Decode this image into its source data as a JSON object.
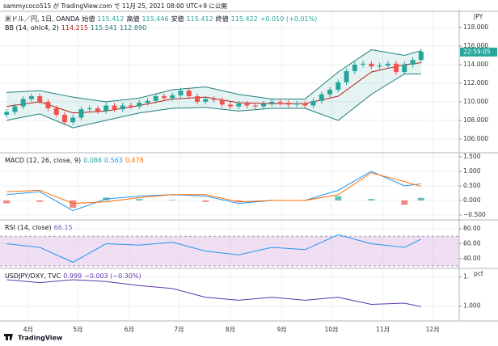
{
  "header": {
    "text": "sammycoco515 が TradingView.com で 11月 25, 2021 08:00 UTC+9 に公開"
  },
  "logo": "TradingView",
  "chart_data": [
    {
      "type": "candlestick",
      "unit": "JPY",
      "badge": "22:59:05",
      "badge_color": "#26a69a",
      "legend": [
        [
          {
            "text": "米ドル／円, 1日, OANDA",
            "color": "#131722"
          },
          {
            "text": "始値",
            "color": "#131722"
          },
          {
            "text": "115.412",
            "color": "#26a69a"
          },
          {
            "text": "高値",
            "color": "#131722"
          },
          {
            "text": "115.446",
            "color": "#26a69a"
          },
          {
            "text": "安値",
            "color": "#131722"
          },
          {
            "text": "115.412",
            "color": "#26a69a"
          },
          {
            "text": "終値",
            "color": "#131722"
          },
          {
            "text": "115.422",
            "color": "#26a69a"
          },
          {
            "text": "+0.010 (+0.01%)",
            "color": "#26a69a"
          }
        ],
        [
          {
            "text": "BB (14, ohlc4, 2)",
            "color": "#131722"
          },
          {
            "text": "114.215",
            "color": "#b71c1c"
          },
          {
            "text": "115.541",
            "color": "#1e7f7a"
          },
          {
            "text": "112.890",
            "color": "#1e7f7a"
          }
        ]
      ],
      "xlim": [
        -17,
        260
      ],
      "ylim": [
        104.6,
        119.65
      ],
      "yticks": [
        {
          "value": 106,
          "label": "106.000"
        },
        {
          "value": 108,
          "label": "108.000"
        },
        {
          "value": 110,
          "label": "110.000"
        },
        {
          "value": 112,
          "label": "112.000"
        },
        {
          "value": 114,
          "label": "114.000"
        },
        {
          "value": 116,
          "label": "116.000"
        },
        {
          "value": 118,
          "label": "118.000"
        }
      ],
      "up_color": "#26a69a",
      "down_color": "#ef5350",
      "x": [
        -13,
        -8,
        -3,
        2,
        7,
        12,
        17,
        22,
        27,
        32,
        37,
        42,
        47,
        52,
        57,
        62,
        67,
        72,
        77,
        82,
        87,
        92,
        97,
        102,
        107,
        112,
        117,
        122,
        127,
        132,
        137,
        142,
        147,
        152,
        157,
        162,
        167,
        172,
        177,
        182,
        187,
        192,
        197,
        202,
        207,
        212,
        217,
        222,
        227,
        232,
        237
      ],
      "open": [
        108.6,
        108.9,
        109.5,
        110.3,
        110.6,
        110.0,
        109.3,
        108.6,
        107.8,
        108.3,
        109.2,
        109.3,
        109.0,
        109.6,
        109.2,
        109.6,
        109.5,
        109.9,
        110.1,
        110.6,
        110.4,
        110.7,
        111.2,
        110.6,
        110.0,
        110.3,
        110.2,
        109.7,
        109.5,
        109.8,
        109.6,
        109.5,
        109.8,
        110.0,
        109.9,
        109.7,
        109.8,
        109.6,
        110.1,
        110.8,
        111.3,
        112.1,
        113.3,
        114.0,
        114.1,
        113.8,
        113.9,
        114.1,
        113.2,
        114.0,
        114.5
      ],
      "high": [
        109.2,
        109.8,
        110.6,
        110.9,
        110.9,
        110.3,
        109.6,
        108.9,
        108.6,
        109.5,
        109.6,
        109.6,
        109.9,
        109.9,
        109.9,
        109.9,
        110.2,
        110.4,
        110.9,
        110.9,
        111.0,
        111.5,
        111.5,
        110.9,
        110.6,
        110.6,
        110.5,
        110.0,
        110.1,
        110.1,
        109.9,
        110.1,
        110.3,
        110.3,
        110.2,
        110.1,
        110.1,
        110.4,
        111.1,
        111.6,
        112.4,
        113.6,
        114.3,
        114.4,
        114.4,
        114.2,
        114.4,
        114.4,
        114.3,
        114.8,
        115.7
      ],
      "low": [
        108.3,
        108.6,
        109.2,
        110.0,
        109.7,
        109.0,
        108.3,
        107.5,
        107.5,
        108.0,
        108.9,
        108.7,
        108.7,
        108.9,
        108.9,
        109.2,
        109.2,
        109.6,
        109.8,
        110.1,
        110.1,
        110.4,
        110.3,
        109.7,
        109.7,
        109.9,
        109.4,
        109.2,
        109.2,
        109.3,
        109.2,
        109.2,
        109.5,
        109.6,
        109.4,
        109.4,
        109.3,
        109.3,
        109.8,
        110.5,
        111.0,
        111.8,
        113.0,
        113.7,
        113.5,
        113.5,
        113.6,
        112.9,
        112.9,
        113.7,
        114.2
      ],
      "close": [
        108.9,
        109.5,
        110.3,
        110.6,
        110.0,
        109.3,
        108.6,
        107.8,
        108.3,
        109.2,
        109.3,
        109.0,
        109.6,
        109.2,
        109.6,
        109.5,
        109.9,
        110.1,
        110.6,
        110.4,
        110.7,
        111.2,
        110.6,
        110.0,
        110.3,
        110.2,
        109.7,
        109.5,
        109.8,
        109.6,
        109.5,
        109.8,
        110.0,
        109.9,
        109.7,
        109.8,
        109.6,
        110.1,
        110.8,
        111.3,
        112.1,
        113.3,
        114.0,
        114.1,
        113.8,
        113.9,
        114.1,
        113.2,
        114.0,
        114.5,
        115.4
      ],
      "bands": {
        "x": [
          -13,
          7,
          27,
          47,
          67,
          87,
          107,
          127,
          147,
          167,
          187,
          207,
          227,
          237
        ],
        "upper": [
          111.0,
          111.2,
          110.5,
          110.0,
          110.4,
          111.3,
          111.6,
          110.8,
          110.3,
          110.3,
          113.2,
          115.6,
          115.0,
          115.5
        ],
        "basis": [
          109.5,
          110.0,
          108.8,
          109.0,
          109.6,
          110.3,
          110.5,
          109.9,
          109.8,
          109.8,
          110.6,
          113.2,
          114.0,
          114.2
        ],
        "lower": [
          108.0,
          108.7,
          107.2,
          108.0,
          108.8,
          109.3,
          109.4,
          109.0,
          109.3,
          109.3,
          108.0,
          110.8,
          113.0,
          113.0
        ],
        "band_color": "#1e7f7a",
        "basis_color": "#b71c1c",
        "fill": "#26a69a"
      }
    },
    {
      "type": "macd",
      "legend": [
        [
          {
            "text": "MACD (12, 26, close, 9)",
            "color": "#131722"
          },
          {
            "text": "0.086",
            "color": "#26a69a"
          },
          {
            "text": "0.563",
            "color": "#2196f3"
          },
          {
            "text": "0.478",
            "color": "#ff6d00"
          }
        ]
      ],
      "ylim": [
        -0.64,
        1.61
      ],
      "yticks": [
        {
          "value": -0.5,
          "label": "−0.500"
        },
        {
          "value": 0,
          "label": "0.000"
        },
        {
          "value": 0.5,
          "label": "0.500"
        },
        {
          "value": 1,
          "label": "1.000"
        },
        {
          "value": 1.5,
          "label": "1.500"
        }
      ],
      "x": [
        -13,
        7,
        27,
        47,
        67,
        87,
        107,
        127,
        147,
        167,
        187,
        207,
        227,
        237
      ],
      "histogram": [
        -0.1,
        -0.05,
        -0.25,
        0.1,
        0.05,
        0.02,
        -0.05,
        -0.05,
        0.02,
        0.02,
        0.15,
        0.05,
        -0.15,
        0.09
      ],
      "up_color": "#26a69a",
      "down_color": "#ef5350",
      "lines": [
        {
          "values": [
            0.2,
            0.3,
            -0.35,
            0.05,
            0.15,
            0.2,
            0.15,
            -0.1,
            0.0,
            0.0,
            0.35,
            1.0,
            0.5,
            0.57
          ],
          "color": "#2196f3"
        },
        {
          "values": [
            0.3,
            0.35,
            -0.1,
            -0.05,
            0.1,
            0.2,
            0.2,
            -0.05,
            0.0,
            0.0,
            0.2,
            0.95,
            0.65,
            0.48
          ],
          "color": "#ff6d00"
        }
      ]
    },
    {
      "type": "rsi",
      "legend": [
        [
          {
            "text": "RSI (14, close)",
            "color": "#131722"
          },
          {
            "text": "66.15",
            "color": "#7e57c2"
          }
        ]
      ],
      "ylim": [
        27.8,
        91
      ],
      "yticks": [
        {
          "value": 40,
          "label": "40.00"
        },
        {
          "value": 60,
          "label": "60.00"
        },
        {
          "value": 80,
          "label": "80.00"
        }
      ],
      "band": [
        30,
        70
      ],
      "band_color": "#e1bee7",
      "x": [
        -13,
        7,
        27,
        47,
        67,
        87,
        107,
        127,
        147,
        167,
        187,
        207,
        227,
        237
      ],
      "lines": [
        {
          "values": [
            60,
            55,
            35,
            60,
            58,
            62,
            50,
            45,
            55,
            52,
            72,
            60,
            55,
            66.15
          ],
          "color": "#2196f3"
        }
      ]
    },
    {
      "type": "ratio",
      "unit": "pct",
      "legend": [
        [
          {
            "text": "USDJPY/DXY, TVC",
            "color": "#131722"
          },
          {
            "text": "0.999",
            "color": "#5e35b1"
          },
          {
            "text": "−0.003 (−0.30%)",
            "color": "#5e35b1"
          }
        ]
      ],
      "ylim": [
        0.976,
        1.063
      ],
      "yticks": [
        {
          "value": 1,
          "label": "1.000"
        },
        {
          "value": 1.05,
          "label": "1."
        }
      ],
      "x": [
        -13,
        7,
        27,
        47,
        67,
        87,
        107,
        127,
        147,
        167,
        187,
        207,
        227,
        237
      ],
      "lines": [
        {
          "values": [
            1.045,
            1.04,
            1.045,
            1.042,
            1.035,
            1.03,
            1.015,
            1.01,
            1.015,
            1.01,
            1.015,
            1.003,
            1.005,
            0.999
          ],
          "color": "#5e35b1"
        }
      ],
      "xticks": [
        {
          "value": 0,
          "label": "4月"
        },
        {
          "value": 30,
          "label": "5月"
        },
        {
          "value": 61,
          "label": "6月"
        },
        {
          "value": 91,
          "label": "7月"
        },
        {
          "value": 122,
          "label": "8月"
        },
        {
          "value": 153,
          "label": "9月"
        },
        {
          "value": 183,
          "label": "10月"
        },
        {
          "value": 214,
          "label": "11月"
        },
        {
          "value": 244,
          "label": "12月"
        }
      ]
    }
  ]
}
